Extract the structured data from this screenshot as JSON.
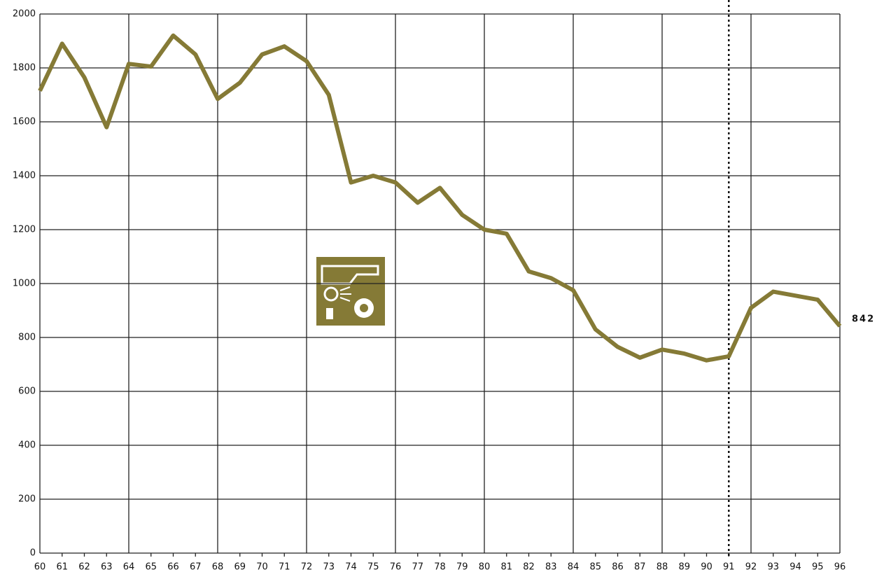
{
  "chart_data": {
    "type": "line",
    "x": [
      60,
      61,
      62,
      63,
      64,
      65,
      66,
      67,
      68,
      69,
      70,
      71,
      72,
      73,
      74,
      75,
      76,
      77,
      78,
      79,
      80,
      81,
      82,
      83,
      84,
      85,
      86,
      87,
      88,
      89,
      90,
      91,
      92,
      93,
      94,
      95,
      96
    ],
    "values": [
      1715,
      1890,
      1765,
      1580,
      1815,
      1805,
      1920,
      1850,
      1685,
      1745,
      1850,
      1880,
      1825,
      1700,
      1375,
      1400,
      1375,
      1300,
      1355,
      1255,
      1200,
      1185,
      1045,
      1020,
      975,
      830,
      765,
      725,
      755,
      740,
      715,
      730,
      910,
      970,
      955,
      940,
      842
    ],
    "color": "#857a36",
    "xlim": [
      60,
      96
    ],
    "xticks": [
      60,
      61,
      62,
      63,
      64,
      65,
      66,
      67,
      68,
      69,
      70,
      71,
      72,
      73,
      74,
      75,
      76,
      77,
      78,
      79,
      80,
      81,
      82,
      83,
      84,
      85,
      86,
      87,
      88,
      89,
      90,
      91,
      92,
      93,
      94,
      95,
      96
    ],
    "ylim": [
      0,
      2000
    ],
    "yticks": [
      0,
      200,
      400,
      600,
      800,
      1000,
      1200,
      1400,
      1600,
      1800,
      2000
    ],
    "grid": true,
    "reference_x": 91
  }
}
